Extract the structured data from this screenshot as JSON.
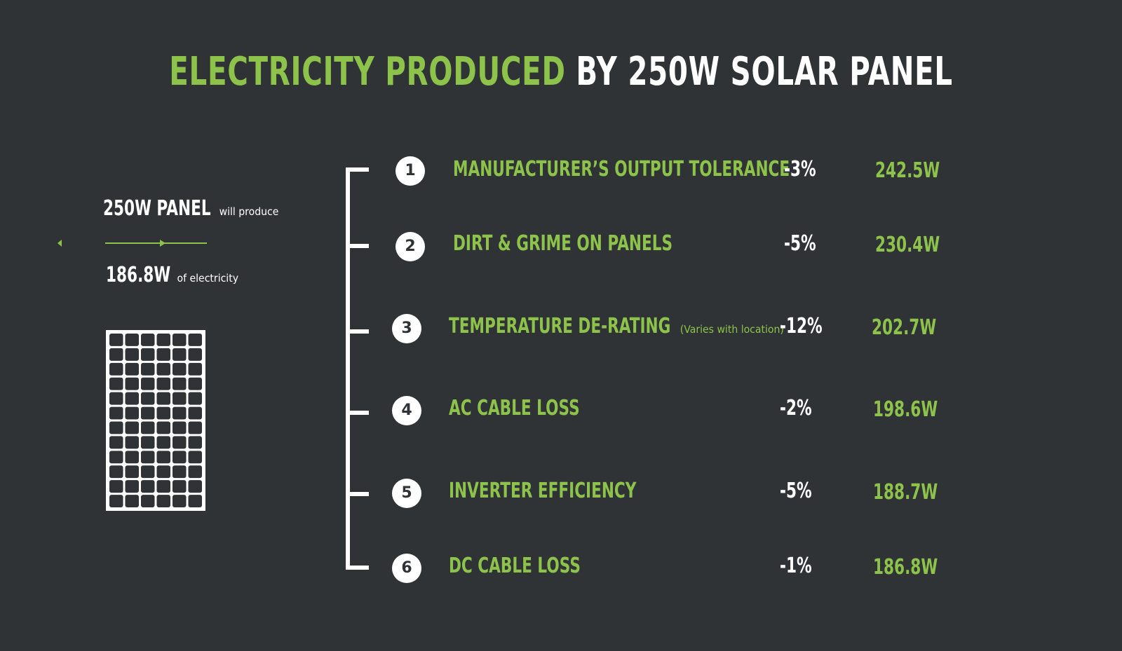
{
  "title": {
    "accent": "ELECTRICITY PRODUCED",
    "rest": "BY 250W SOLAR PANEL"
  },
  "summary": {
    "panel_rating": "250W PANEL",
    "panel_suffix": "will produce",
    "output": "186.8W",
    "output_suffix": "of electricity"
  },
  "colors": {
    "background": "#2f3336",
    "accent": "#8dc34a",
    "text": "#ffffff"
  },
  "losses": [
    {
      "num": "1",
      "label": "MANUFACTURER’S OUTPUT TOLERANCE",
      "note": "",
      "pct": "-3%",
      "watts": "242.5W"
    },
    {
      "num": "2",
      "label": "DIRT & GRIME ON PANELS",
      "note": "",
      "pct": "-5%",
      "watts": "230.4W"
    },
    {
      "num": "3",
      "label": "TEMPERATURE DE-RATING",
      "note": "(Varies with location)",
      "pct": "-12%",
      "watts": "202.7W"
    },
    {
      "num": "4",
      "label": "AC CABLE LOSS",
      "note": "",
      "pct": "-2%",
      "watts": "198.6W"
    },
    {
      "num": "5",
      "label": "INVERTER EFFICIENCY",
      "note": "",
      "pct": "-5%",
      "watts": "188.7W"
    },
    {
      "num": "6",
      "label": "DC CABLE LOSS",
      "note": "",
      "pct": "-1%",
      "watts": "186.8W"
    }
  ]
}
